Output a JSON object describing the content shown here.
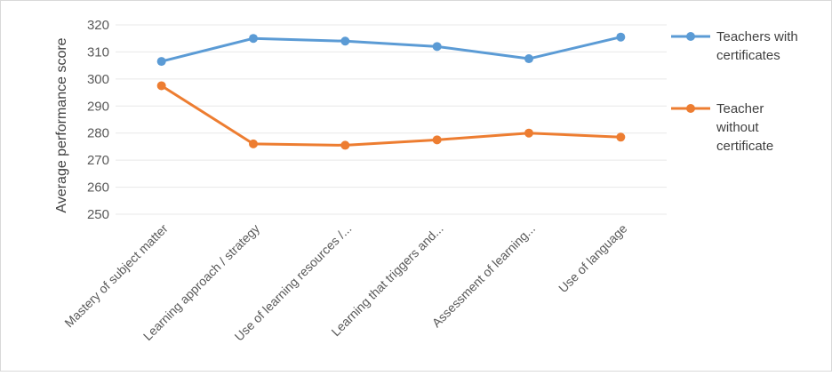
{
  "chart_data": {
    "type": "line",
    "title": "",
    "xlabel": "",
    "ylabel": "Average performance score",
    "ylim": [
      250,
      320
    ],
    "yticks": [
      250,
      260,
      270,
      280,
      290,
      300,
      310,
      320
    ],
    "grid": true,
    "legend_position": "right",
    "categories": [
      "Mastery of subject matter",
      "Learning approach / strategy",
      "Use of learning resources /...",
      "Learning that triggers and...",
      "Assessment of learning...",
      "Use of language"
    ],
    "series": [
      {
        "name": "Teachers with certificates",
        "legend_lines": [
          "Teachers with",
          "certificates"
        ],
        "color": "#5b9bd5",
        "values": [
          306.5,
          315,
          314,
          312,
          307.5,
          315.5
        ]
      },
      {
        "name": "Teacher without certificate",
        "legend_lines": [
          "Teacher",
          "without",
          "certificate"
        ],
        "color": "#ed7d31",
        "values": [
          297.5,
          276,
          275.5,
          277.5,
          280,
          278.5
        ]
      }
    ]
  }
}
